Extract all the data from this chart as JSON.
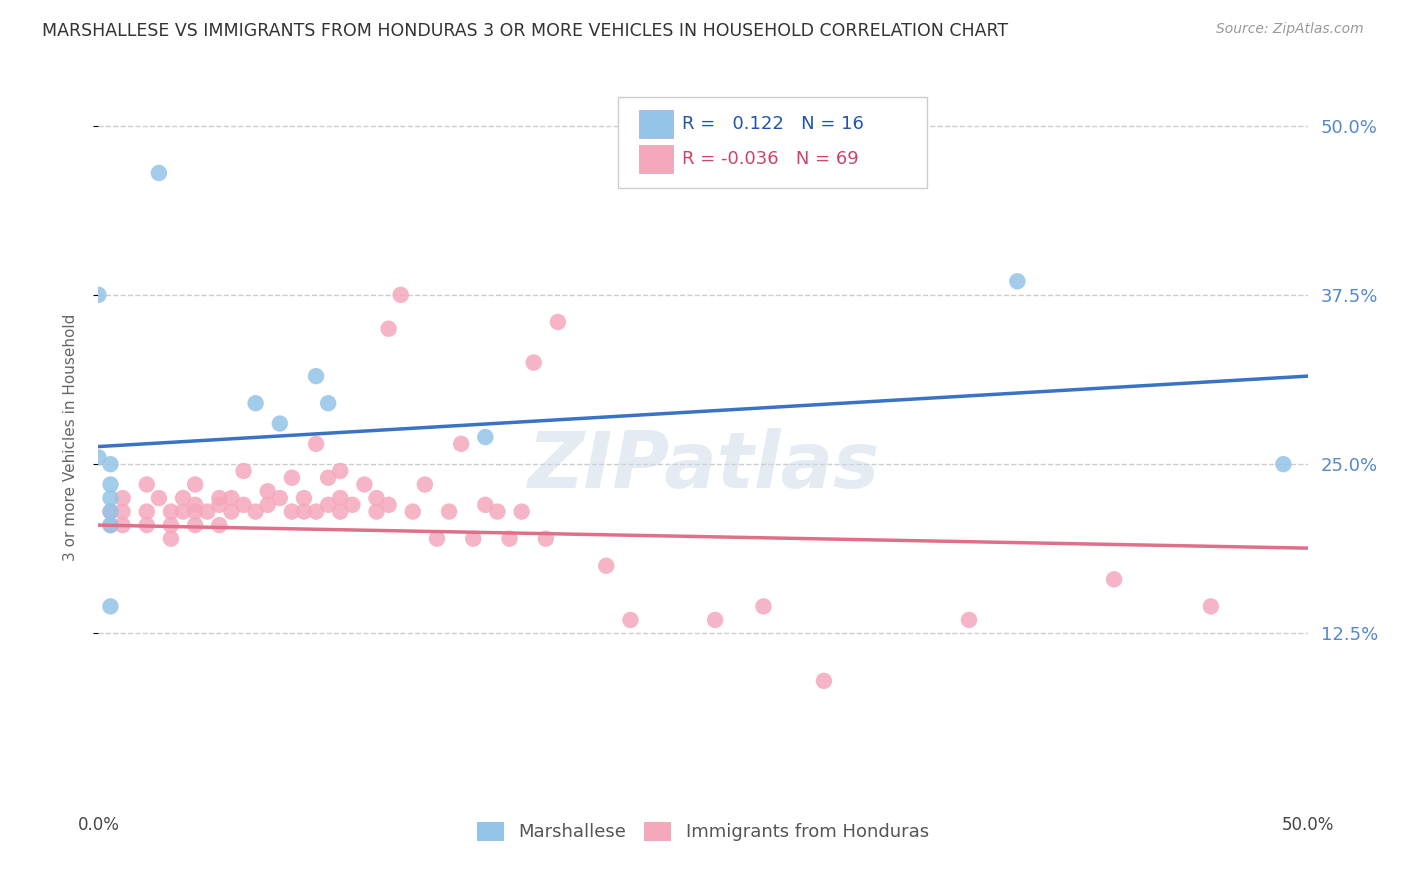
{
  "title": "MARSHALLESE VS IMMIGRANTS FROM HONDURAS 3 OR MORE VEHICLES IN HOUSEHOLD CORRELATION CHART",
  "source": "Source: ZipAtlas.com",
  "ylabel": "3 or more Vehicles in Household",
  "ytick_values": [
    0.125,
    0.25,
    0.375,
    0.5
  ],
  "ytick_labels": [
    "12.5%",
    "25.0%",
    "37.5%",
    "50.0%"
  ],
  "xlim": [
    0.0,
    0.5
  ],
  "ylim": [
    0.0,
    0.54
  ],
  "legend_blue_label": "Marshallese",
  "legend_pink_label": "Immigrants from Honduras",
  "R_blue": 0.122,
  "N_blue": 16,
  "R_pink": -0.036,
  "N_pink": 69,
  "blue_color": "#93c4e8",
  "blue_line_color": "#3a72c4",
  "pink_color": "#f5a8bc",
  "pink_line_color": "#e0708a",
  "title_color": "#333333",
  "right_axis_color": "#5588cc",
  "watermark": "ZIPatlas",
  "blue_scatter_x": [
    0.025,
    0.0,
    0.065,
    0.075,
    0.09,
    0.095,
    0.0,
    0.005,
    0.005,
    0.005,
    0.005,
    0.005,
    0.38,
    0.49,
    0.005,
    0.16
  ],
  "blue_scatter_y": [
    0.465,
    0.375,
    0.295,
    0.28,
    0.315,
    0.295,
    0.255,
    0.25,
    0.235,
    0.225,
    0.215,
    0.205,
    0.385,
    0.25,
    0.145,
    0.27
  ],
  "pink_scatter_x": [
    0.005,
    0.005,
    0.01,
    0.01,
    0.01,
    0.02,
    0.02,
    0.02,
    0.025,
    0.03,
    0.03,
    0.03,
    0.035,
    0.035,
    0.04,
    0.04,
    0.04,
    0.04,
    0.045,
    0.05,
    0.05,
    0.05,
    0.055,
    0.055,
    0.06,
    0.06,
    0.065,
    0.07,
    0.07,
    0.075,
    0.08,
    0.08,
    0.085,
    0.085,
    0.09,
    0.09,
    0.095,
    0.095,
    0.1,
    0.1,
    0.1,
    0.105,
    0.11,
    0.115,
    0.115,
    0.12,
    0.12,
    0.125,
    0.13,
    0.135,
    0.14,
    0.145,
    0.15,
    0.155,
    0.16,
    0.165,
    0.17,
    0.175,
    0.18,
    0.185,
    0.19,
    0.21,
    0.22,
    0.255,
    0.275,
    0.3,
    0.36,
    0.42,
    0.46
  ],
  "pink_scatter_y": [
    0.215,
    0.205,
    0.225,
    0.215,
    0.205,
    0.235,
    0.215,
    0.205,
    0.225,
    0.215,
    0.205,
    0.195,
    0.225,
    0.215,
    0.235,
    0.22,
    0.215,
    0.205,
    0.215,
    0.225,
    0.22,
    0.205,
    0.225,
    0.215,
    0.245,
    0.22,
    0.215,
    0.23,
    0.22,
    0.225,
    0.24,
    0.215,
    0.225,
    0.215,
    0.265,
    0.215,
    0.24,
    0.22,
    0.245,
    0.225,
    0.215,
    0.22,
    0.235,
    0.225,
    0.215,
    0.35,
    0.22,
    0.375,
    0.215,
    0.235,
    0.195,
    0.215,
    0.265,
    0.195,
    0.22,
    0.215,
    0.195,
    0.215,
    0.325,
    0.195,
    0.355,
    0.175,
    0.135,
    0.135,
    0.145,
    0.09,
    0.135,
    0.165,
    0.145
  ],
  "blue_line_x0": 0.0,
  "blue_line_y0": 0.263,
  "blue_line_x1": 0.5,
  "blue_line_y1": 0.315,
  "pink_line_x0": 0.0,
  "pink_line_y0": 0.205,
  "pink_line_x1": 0.5,
  "pink_line_y1": 0.188
}
